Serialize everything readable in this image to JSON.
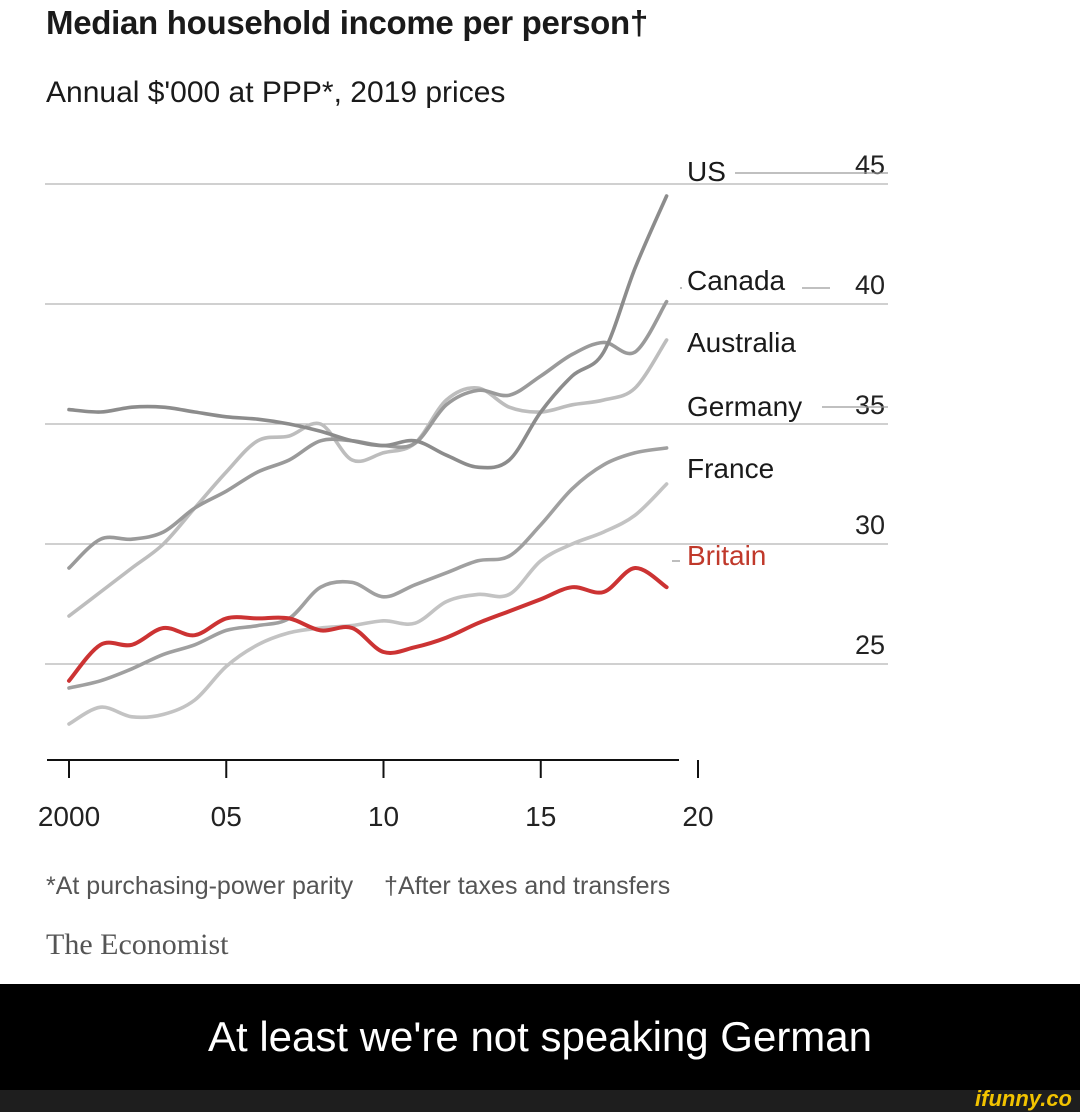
{
  "chart_data": {
    "type": "line",
    "title": "Median household income per person†",
    "subtitle": "Annual $'000 at PPP*, 2019 prices",
    "x_tick_labels": [
      "2000",
      "05",
      "10",
      "15",
      "20"
    ],
    "x_ticks": [
      2000,
      2005,
      2010,
      2015,
      2020
    ],
    "xlim": [
      1999.3,
      2020
    ],
    "y_ticks": [
      25,
      30,
      35,
      40,
      45
    ],
    "ylim": [
      21,
      46
    ],
    "grid": true,
    "y_axis_side": "right",
    "series": [
      {
        "name": "US",
        "color": "#8c8c8c",
        "x": [
          2000,
          2001,
          2002,
          2003,
          2004,
          2005,
          2006,
          2007,
          2008,
          2009,
          2010,
          2011,
          2012,
          2013,
          2014,
          2015,
          2016,
          2017,
          2018,
          2019
        ],
        "y": [
          35.6,
          35.5,
          35.7,
          35.7,
          35.5,
          35.3,
          35.2,
          35.0,
          34.7,
          34.3,
          34.1,
          34.3,
          33.7,
          33.2,
          33.5,
          35.5,
          37.0,
          38.0,
          41.5,
          44.5
        ]
      },
      {
        "name": "Canada",
        "color": "#9a9a9a",
        "x": [
          2000,
          2001,
          2002,
          2003,
          2004,
          2005,
          2006,
          2007,
          2008,
          2009,
          2010,
          2011,
          2012,
          2013,
          2014,
          2015,
          2016,
          2017,
          2018,
          2019
        ],
        "y": [
          29.0,
          30.2,
          30.2,
          30.5,
          31.5,
          32.2,
          33.0,
          33.5,
          34.3,
          34.3,
          34.1,
          34.2,
          35.8,
          36.4,
          36.2,
          37.0,
          37.9,
          38.4,
          38.0,
          40.1
        ]
      },
      {
        "name": "Australia",
        "color": "#bdbdbd",
        "x": [
          2000,
          2001,
          2002,
          2003,
          2004,
          2005,
          2006,
          2007,
          2008,
          2009,
          2010,
          2011,
          2012,
          2013,
          2014,
          2015,
          2016,
          2017,
          2018,
          2019
        ],
        "y": [
          27.0,
          28.0,
          29.0,
          30.0,
          31.5,
          33.0,
          34.3,
          34.5,
          35.0,
          33.5,
          33.8,
          34.2,
          36.0,
          36.5,
          35.7,
          35.5,
          35.8,
          36.0,
          36.5,
          38.5
        ]
      },
      {
        "name": "Germany",
        "color": "#a0a0a0",
        "x": [
          2000,
          2001,
          2002,
          2003,
          2004,
          2005,
          2006,
          2007,
          2008,
          2009,
          2010,
          2011,
          2012,
          2013,
          2014,
          2015,
          2016,
          2017,
          2018,
          2019
        ],
        "y": [
          24.0,
          24.3,
          24.8,
          25.4,
          25.8,
          26.4,
          26.6,
          26.9,
          28.2,
          28.4,
          27.8,
          28.3,
          28.8,
          29.3,
          29.5,
          30.8,
          32.3,
          33.3,
          33.8,
          34.0
        ]
      },
      {
        "name": "France",
        "color": "#c3c3c3",
        "x": [
          2000,
          2001,
          2002,
          2003,
          2004,
          2005,
          2006,
          2007,
          2008,
          2009,
          2010,
          2011,
          2012,
          2013,
          2014,
          2015,
          2016,
          2017,
          2018,
          2019
        ],
        "y": [
          22.5,
          23.2,
          22.8,
          22.9,
          23.5,
          24.9,
          25.8,
          26.3,
          26.5,
          26.6,
          26.8,
          26.7,
          27.6,
          27.9,
          27.9,
          29.3,
          30.0,
          30.5,
          31.2,
          32.5
        ]
      },
      {
        "name": "Britain",
        "color": "#cc3333",
        "x": [
          2000,
          2001,
          2002,
          2003,
          2004,
          2005,
          2006,
          2007,
          2008,
          2009,
          2010,
          2011,
          2012,
          2013,
          2014,
          2015,
          2016,
          2017,
          2018,
          2019
        ],
        "y": [
          24.3,
          25.8,
          25.8,
          26.5,
          26.2,
          26.9,
          26.9,
          26.9,
          26.4,
          26.5,
          25.5,
          25.7,
          26.1,
          26.7,
          27.2,
          27.7,
          28.2,
          28.0,
          29.0,
          28.2
        ]
      }
    ],
    "label_positions": "line-end, right of plot"
  },
  "footnotes": {
    "ppp": "*At purchasing-power parity",
    "after_tax": "†After taxes and transfers"
  },
  "source": "The Economist",
  "caption": "At least we're not speaking German",
  "watermark": "ifunny.co"
}
